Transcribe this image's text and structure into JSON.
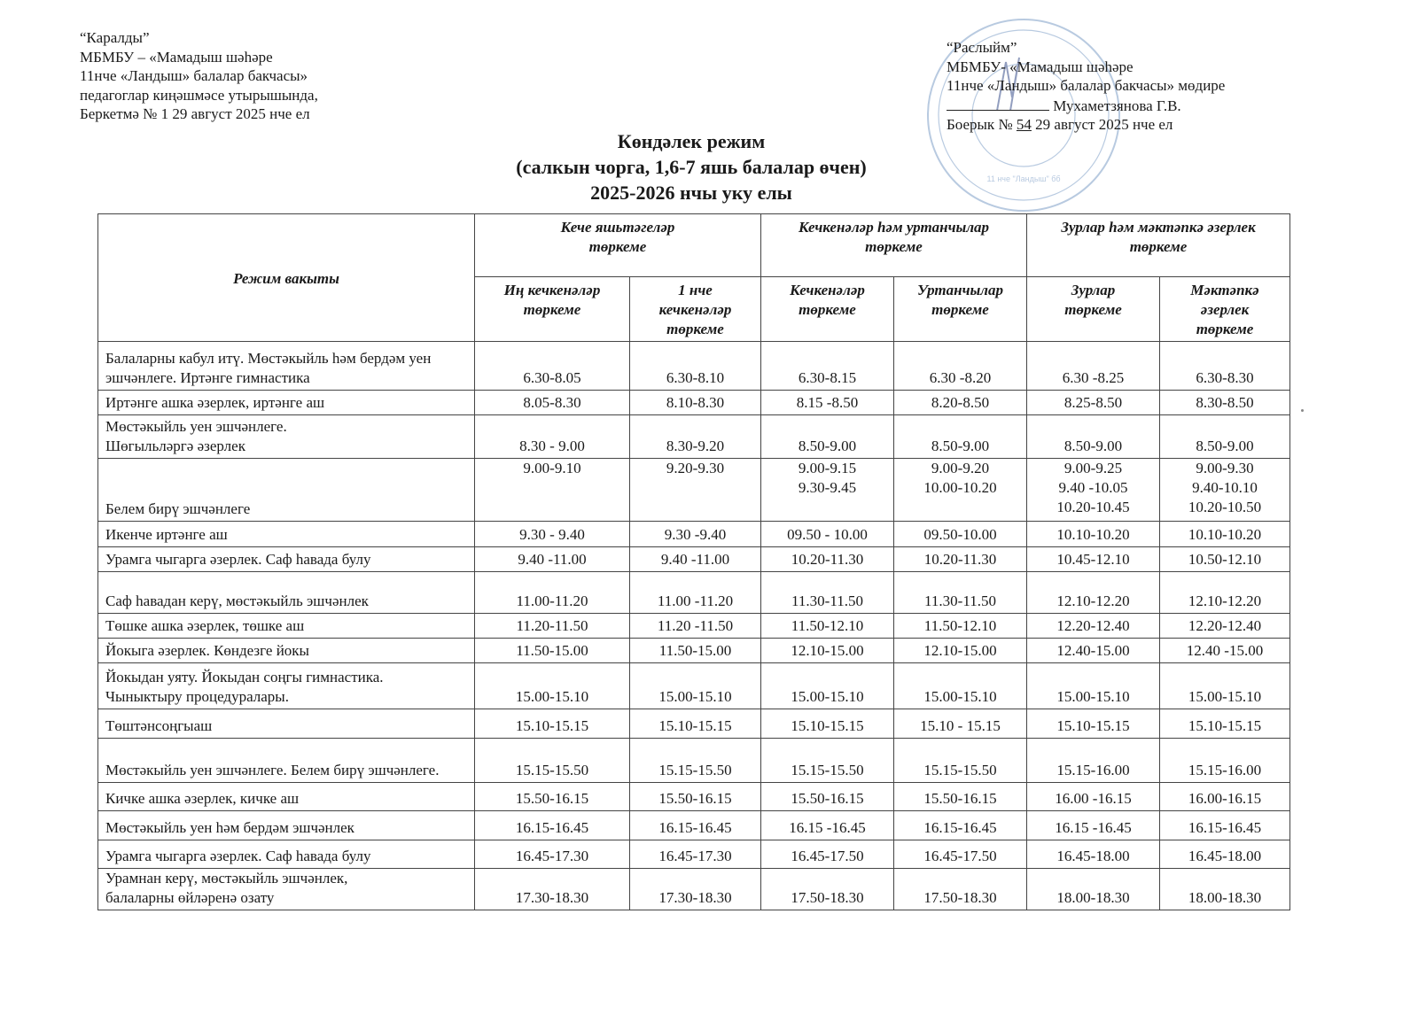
{
  "approval_left": {
    "lines": [
      "“Каралды”",
      "МБМБУ – «Мамадыш шәһәре",
      "11нче  «Ландыш» балалар бакчасы»",
      "педагоглар киңәшмәсе утырышында,",
      "Беркетмә № 1   29 август 2025 нче ел"
    ]
  },
  "approval_right": {
    "line1": "“Раслыйм”",
    "line2": "МБМБУ-  «Мамадыш шәһәре",
    "line3": "11нче  «Ландыш» балалар бакчасы» мөдире",
    "signer": "Мухаметзянова Г.В.",
    "order_prefix": "Боерык  №",
    "order_number": "54",
    "order_date": "29 август 2025 нче ел"
  },
  "stamp": {
    "color": "#7f9fc8",
    "text": "11 нче \"Ландыш\" бб"
  },
  "title": {
    "line1": "Көндәлек режим",
    "line2": "(салкын чорга, 1,6-7 яшь балалар өчен)",
    "line3": "2025-2026 нчы уку елы"
  },
  "table": {
    "col_header": "Режим вакыты",
    "groups": [
      "Кече яшьтәгеләр\nтөркеме",
      "Кечкенәләр һәм уртанчылар\nтөркеме",
      "Зурлар һәм мәктәпкә әзерлек\nтөркеме"
    ],
    "subgroups": [
      "Иң кечкенәләр\nтөркеме",
      "1 нче\nкечкенәләр\nтөркеме",
      "Кечкенәләр\nтөркеме",
      "Уртанчылар\nтөркеме",
      "Зурлар\nтөркеме",
      "Мәктәпкә\nәзерлек\nтөркеме"
    ],
    "rows": [
      {
        "activity": "Балаларны кабул итү. Мөстәкыйль һәм бердәм уен эшчәнлеге. Иртәнге гимнастика",
        "times": [
          "6.30-8.05",
          "6.30-8.10",
          "6.30-8.15",
          "6.30 -8.20",
          "6.30 -8.25",
          "6.30-8.30"
        ]
      },
      {
        "activity": "Иртәнге ашка әзерлек, иртәнге аш",
        "times": [
          "8.05-8.30",
          "8.10-8.30",
          "8.15 -8.50",
          "8.20-8.50",
          "8.25-8.50",
          "8.30-8.50"
        ]
      },
      {
        "activity": "Мөстәкыйль уен эшчәнлеге.\nШөгыльләргә әзерлек",
        "times": [
          "8.30 - 9.00",
          "8.30-9.20",
          "8.50-9.00",
          "8.50-9.00",
          "8.50-9.00",
          "8.50-9.00"
        ]
      },
      {
        "activity": "Белем бирү эшчәнлеге",
        "times": [
          "9.00-9.10",
          "9.20-9.30",
          "9.00-9.15\n9.30-9.45",
          "9.00-9.20\n10.00-10.20",
          "9.00-9.25\n9.40 -10.05\n10.20-10.45",
          "9.00-9.30\n9.40-10.10\n10.20-10.50"
        ]
      },
      {
        "activity": "Икенче иртәнге аш",
        "times": [
          "9.30 - 9.40",
          "9.30 -9.40",
          "09.50 - 10.00",
          "09.50-10.00",
          "10.10-10.20",
          "10.10-10.20"
        ]
      },
      {
        "activity": "Урамга чыгарга әзерлек. Саф һавада булу",
        "times": [
          "9.40 -11.00",
          "9.40 -11.00",
          "10.20-11.30",
          "10.20-11.30",
          "10.45-12.10",
          "10.50-12.10"
        ]
      },
      {
        "activity": "Саф һавадан керү, мөстәкыйль эшчәнлек",
        "times": [
          "11.00-11.20",
          "11.00 -11.20",
          "11.30-11.50",
          "11.30-11.50",
          "12.10-12.20",
          "12.10-12.20"
        ]
      },
      {
        "activity": "Төшке ашка әзерлек, төшке аш",
        "times": [
          "11.20-11.50",
          "11.20 -11.50",
          "11.50-12.10",
          "11.50-12.10",
          "12.20-12.40",
          "12.20-12.40"
        ]
      },
      {
        "activity": "Йокыга әзерлек.  Көндезге йокы",
        "times": [
          "11.50-15.00",
          "11.50-15.00",
          "12.10-15.00",
          "12.10-15.00",
          "12.40-15.00",
          "12.40 -15.00"
        ]
      },
      {
        "activity": "Йокыдан уяту. Йокыдан соңгы гимнастика.\nЧыныктыру процедуралары.",
        "times": [
          "15.00-15.10",
          "15.00-15.10",
          "15.00-15.10",
          "15.00-15.10",
          "15.00-15.10",
          "15.00-15.10"
        ]
      },
      {
        "activity": "Төштәнсоңгыаш",
        "times": [
          "15.10-15.15",
          "15.10-15.15",
          "15.10-15.15",
          "15.10 - 15.15",
          "15.10-15.15",
          "15.10-15.15"
        ]
      },
      {
        "activity": "Мөстәкыйль  уен  эшчәнлеге.  Белем  бирү эшчәнлеге.",
        "times": [
          "15.15-15.50",
          "15.15-15.50",
          "15.15-15.50",
          "15.15-15.50",
          "15.15-16.00",
          "15.15-16.00"
        ]
      },
      {
        "activity": "Кичке ашка әзерлек, кичке аш",
        "times": [
          "15.50-16.15",
          "15.50-16.15",
          "15.50-16.15",
          "15.50-16.15",
          "16.00 -16.15",
          "16.00-16.15"
        ]
      },
      {
        "activity": "Мөстәкыйль уен һәм бердәм  эшчәнлек",
        "times": [
          "16.15-16.45",
          "16.15-16.45",
          "16.15 -16.45",
          "16.15-16.45",
          "16.15 -16.45",
          "16.15-16.45"
        ]
      },
      {
        "activity": "Урамга чыгарга әзерлек. Саф һавада булу",
        "times": [
          "16.45-17.30",
          "16.45-17.30",
          "16.45-17.50",
          "16.45-17.50",
          "16.45-18.00",
          "16.45-18.00"
        ]
      },
      {
        "activity": "Урамнан  керү, мөстәкыйль эшчәнлек,\nбалаларны өйләренә озату",
        "times": [
          "17.30-18.30",
          "17.30-18.30",
          "17.50-18.30",
          "17.50-18.30",
          "18.00-18.30",
          "18.00-18.30"
        ]
      }
    ]
  }
}
